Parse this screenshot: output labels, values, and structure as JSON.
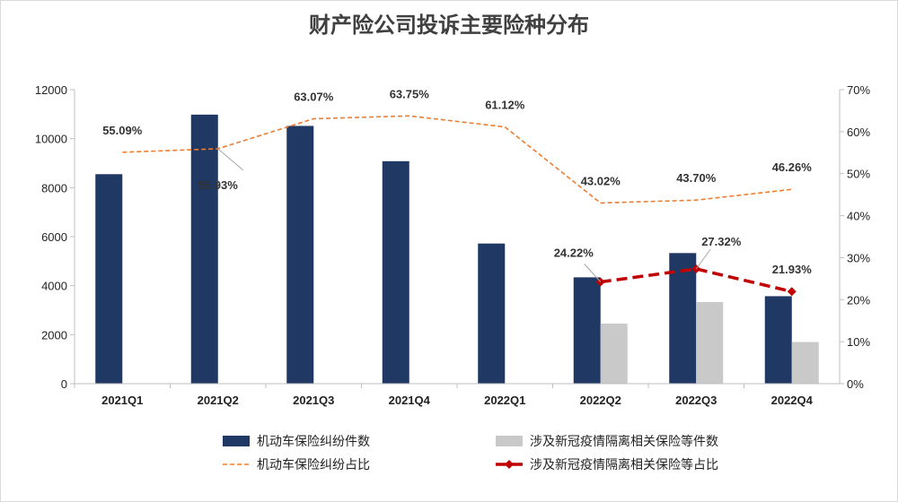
{
  "chart_data": {
    "type": "bar",
    "title": "财产险公司投诉主要险种分布",
    "categories": [
      "2021Q1",
      "2021Q2",
      "2021Q3",
      "2021Q4",
      "2022Q1",
      "2022Q2",
      "2022Q3",
      "2022Q4"
    ],
    "left_axis": {
      "min": 0,
      "max": 12000,
      "ticks": [
        "0",
        "2000",
        "4000",
        "6000",
        "8000",
        "10000",
        "12000"
      ]
    },
    "right_axis": {
      "min": 0,
      "max": 70,
      "ticks": [
        "0%",
        "10%",
        "20%",
        "30%",
        "40%",
        "50%",
        "60%",
        "70%"
      ]
    },
    "series": [
      {
        "name": "机动车保险纠纷件数",
        "kind": "bar",
        "axis": "left",
        "color": "#1f3864",
        "values": [
          8550,
          10980,
          10520,
          9080,
          5720,
          4340,
          5330,
          3570
        ]
      },
      {
        "name": "涉及新冠疫情隔离相关保险等件数",
        "kind": "bar",
        "axis": "left",
        "color": "#c9c9c9",
        "values": [
          null,
          null,
          null,
          null,
          null,
          2450,
          3330,
          1700
        ]
      },
      {
        "name": "机动车保险纠纷占比",
        "kind": "line",
        "axis": "right",
        "color": "#ed7d31",
        "values": [
          55.09,
          55.93,
          63.07,
          63.75,
          61.12,
          43.02,
          43.7,
          46.26
        ],
        "labels": [
          "55.09%",
          "55.93%",
          "63.07%",
          "63.75%",
          "61.12%",
          "43.02%",
          "43.70%",
          "46.26%"
        ]
      },
      {
        "name": "涉及新冠疫情隔离相关保险等占比",
        "kind": "line",
        "axis": "right",
        "color": "#c00000",
        "values": [
          null,
          null,
          null,
          null,
          null,
          24.22,
          27.32,
          21.93
        ],
        "labels": [
          "",
          "",
          "",
          "",
          "",
          "24.22%",
          "27.32%",
          "21.93%"
        ]
      }
    ],
    "legend_position": "bottom",
    "grid": false
  }
}
